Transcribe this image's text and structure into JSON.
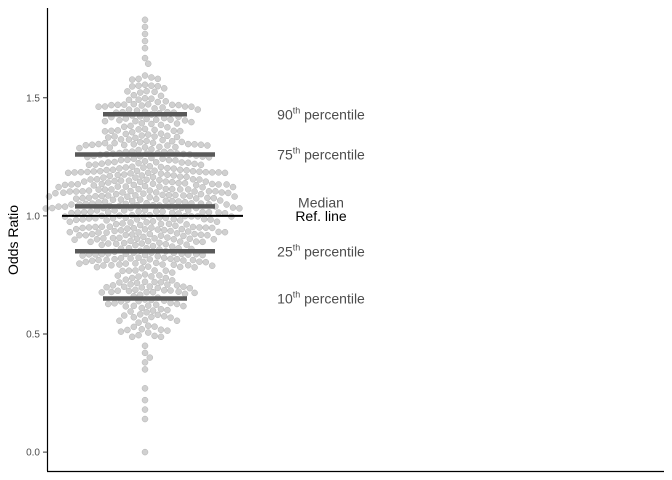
{
  "chart_data": {
    "type": "scatter",
    "subtype": "beeswarm",
    "ylabel": "Odds Ratio",
    "xlabel": "",
    "ylim": [
      -0.08,
      1.88
    ],
    "yticks": [
      0.0,
      0.5,
      1.0,
      1.5
    ],
    "ytick_labels": [
      "0.0",
      "0.5",
      "1.0",
      "1.5"
    ],
    "grid": false,
    "point_color": "#c8c8c8",
    "point_stroke": "#b3b3b3",
    "reference_line": {
      "value": 1.0,
      "label": "Ref. line",
      "color": "#000000"
    },
    "percentile_color": "#595959",
    "percentiles": [
      {
        "key": "p90",
        "value": 1.43,
        "sup": "th",
        "number": "90",
        "suffix": " percentile",
        "width": "narrow"
      },
      {
        "key": "p75",
        "value": 1.26,
        "sup": "th",
        "number": "75",
        "suffix": " percentile",
        "width": "wide"
      },
      {
        "key": "median",
        "value": 1.04,
        "label": "Median",
        "width": "wide"
      },
      {
        "key": "p25",
        "value": 0.85,
        "sup": "th",
        "number": "25",
        "suffix": " percentile",
        "width": "wide"
      },
      {
        "key": "p10",
        "value": 0.65,
        "sup": "th",
        "number": "10",
        "suffix": " percentile",
        "width": "narrow"
      }
    ],
    "n_points": 600,
    "points_min": 0.0,
    "points_max": 1.83,
    "tail_values": [
      0.0,
      0.14,
      0.18,
      0.22,
      0.27,
      0.35,
      0.38,
      0.4,
      0.42,
      0.45,
      1.71,
      1.74,
      1.77,
      1.8,
      1.83
    ]
  }
}
